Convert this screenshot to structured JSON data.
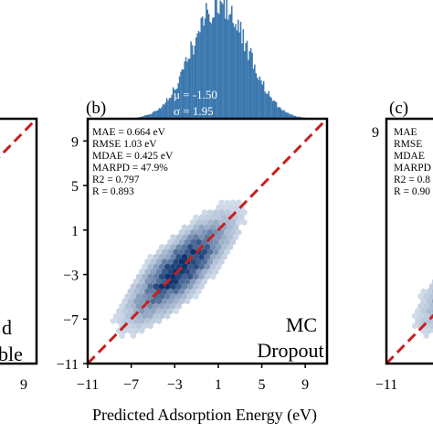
{
  "xlabel": "Predicted Adsorption Energy (eV)",
  "histogram": {
    "mu_text": "μ = -1.50",
    "sigma_text": "σ = 1.95",
    "mu": -1.5,
    "sigma": 1.95,
    "color": "#3a77ae"
  },
  "left_panel": {
    "line1": "d",
    "line2": "ble",
    "ticks": [
      "9"
    ]
  },
  "center_panel": {
    "label": "(b)",
    "method_line1": "MC",
    "method_line2": "Dropout",
    "stats": [
      "MAE = 0.664 eV",
      "RMSE   1.03 eV",
      "MDAE = 0.425 eV",
      "MARPD = 47.9%",
      "R2 = 0.797",
      "R = 0.893"
    ]
  },
  "right_panel": {
    "label": "(c)",
    "stats": [
      "MAE",
      "RMSE",
      "MDAE",
      "MARPD",
      "R2 = 0.8",
      "R = 0.90"
    ],
    "ticks": [
      "9",
      "−11"
    ]
  },
  "chart_data": {
    "type": "hexbin",
    "xlabel": "Predicted Adsorption Energy (eV)",
    "xlim": [
      -11,
      11
    ],
    "ylim": [
      -11,
      11
    ],
    "xticks": [
      -11,
      -7,
      -3,
      1,
      5,
      9
    ],
    "yticks": [
      -11,
      -7,
      -3,
      1,
      5,
      9
    ],
    "xtick_labels": [
      "−11",
      "−7",
      "−3",
      "1",
      "5",
      "9"
    ],
    "ytick_labels": [
      "−11",
      "−7",
      "−3",
      "1",
      "5",
      "9"
    ],
    "density_center": [
      -2.5,
      -2.5
    ],
    "parity_line": {
      "from": [
        -11,
        -11
      ],
      "to": [
        11,
        11
      ],
      "color": "#c8201f",
      "style": "dashed"
    },
    "cmap_colors": [
      "#e8f0f8",
      "#08306b"
    ]
  }
}
